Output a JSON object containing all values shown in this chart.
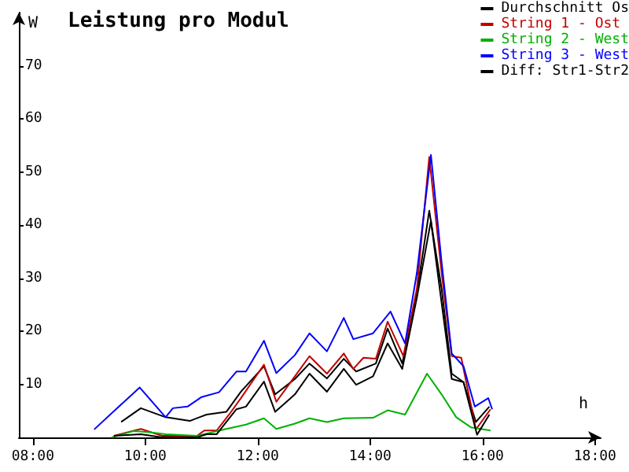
{
  "chart_data": {
    "type": "line",
    "title": "Leistung pro Modul",
    "xlabel": "h",
    "ylabel": "W",
    "xlim": [
      7.75,
      18.1
    ],
    "xticks": [
      {
        "value": 8,
        "label": "08:00"
      },
      {
        "value": 10,
        "label": "10:00"
      },
      {
        "value": 12,
        "label": "12:00"
      },
      {
        "value": 14,
        "label": "14:00"
      },
      {
        "value": 16,
        "label": "16:00"
      },
      {
        "value": 18,
        "label": "18:00"
      }
    ],
    "ylim": [
      0,
      80
    ],
    "yticks": [
      10,
      20,
      30,
      40,
      50,
      60,
      70
    ],
    "grid": false,
    "legend": "top right",
    "marker": "none",
    "line_style": "solid",
    "series": [
      {
        "name": "Durchschnitt Os",
        "color": "#000000",
        "x": [
          9.57,
          9.92,
          10.36,
          10.79,
          11.09,
          11.44,
          11.7,
          12.11,
          12.31,
          12.66,
          12.92,
          13.23,
          13.53,
          13.75,
          14.1,
          14.31,
          14.57,
          14.83,
          15.05,
          15.27,
          15.45,
          15.66,
          15.88,
          16.12
        ],
        "values": [
          2.9,
          5.5,
          3.8,
          3.1,
          4.3,
          4.8,
          8.6,
          13.4,
          8.1,
          11,
          13.9,
          11.1,
          14.8,
          12.4,
          13.9,
          20.5,
          13.9,
          27.2,
          42.7,
          28,
          12,
          10.4,
          2.9,
          5.8
        ]
      },
      {
        "name": "String 1 - Ost",
        "color": "#c00000",
        "x": [
          9.44,
          9.92,
          10.3,
          10.92,
          11.05,
          11.27,
          11.49,
          11.7,
          12.11,
          12.33,
          12.66,
          12.92,
          13.23,
          13.53,
          13.7,
          13.88,
          14.1,
          14.31,
          14.59,
          14.83,
          15.05,
          15.27,
          15.45,
          15.62,
          15.88,
          16.14
        ],
        "values": [
          0.3,
          1.6,
          0.3,
          0.3,
          1.3,
          1.3,
          4.3,
          7.4,
          13.7,
          6.7,
          11.5,
          15.3,
          12,
          15.8,
          12.9,
          15,
          14.8,
          21.8,
          15.3,
          28,
          52.8,
          31,
          15.3,
          15,
          1.5,
          5.3
        ]
      },
      {
        "name": "String 2 - West",
        "color": "#00b000",
        "x": [
          9.4,
          9.79,
          10.05,
          10.36,
          10.92,
          11.44,
          11.79,
          12.11,
          12.33,
          12.66,
          12.92,
          13.23,
          13.53,
          14.05,
          14.31,
          14.62,
          15.01,
          15.27,
          15.53,
          15.79,
          16.14
        ],
        "values": [
          0,
          1.2,
          1,
          0.6,
          0.3,
          1.6,
          2.4,
          3.6,
          1.6,
          2.6,
          3.6,
          2.9,
          3.6,
          3.7,
          5.1,
          4.3,
          12,
          8.1,
          3.8,
          1.9,
          1.3
        ]
      },
      {
        "name": "String 3 - West",
        "color": "#0000ff",
        "x": [
          9.09,
          9.53,
          9.9,
          10.36,
          10.49,
          10.75,
          11.0,
          11.31,
          11.62,
          11.79,
          12.11,
          12.33,
          12.66,
          12.92,
          13.23,
          13.53,
          13.7,
          14.05,
          14.36,
          14.62,
          14.83,
          15.08,
          15.27,
          15.45,
          15.66,
          15.86,
          16.1,
          16.17
        ],
        "values": [
          1.5,
          5.8,
          9.4,
          3.8,
          5.5,
          5.8,
          7.6,
          8.5,
          12.4,
          12.4,
          18.2,
          12.1,
          15.5,
          19.6,
          16.2,
          22.5,
          18.5,
          19.6,
          23.7,
          17.7,
          31,
          53.2,
          33,
          15.8,
          13.4,
          5.8,
          7.4,
          5.3
        ]
      },
      {
        "name": "Diff: Str1-Str2",
        "color": "#000000",
        "x": [
          9.44,
          9.92,
          10.3,
          10.92,
          11.09,
          11.27,
          11.62,
          11.79,
          12.11,
          12.31,
          12.66,
          12.92,
          13.23,
          13.53,
          13.75,
          14.05,
          14.31,
          14.57,
          14.83,
          15.08,
          15.27,
          15.45,
          15.66,
          15.9,
          16.12
        ],
        "values": [
          0.3,
          0.6,
          0,
          0,
          0.6,
          0.6,
          5.3,
          5.8,
          10.5,
          4.8,
          8.1,
          12,
          8.6,
          12.9,
          9.9,
          11.5,
          17.7,
          12.9,
          26.3,
          40.8,
          25.3,
          11,
          10.4,
          0.5,
          4.3
        ]
      }
    ]
  }
}
